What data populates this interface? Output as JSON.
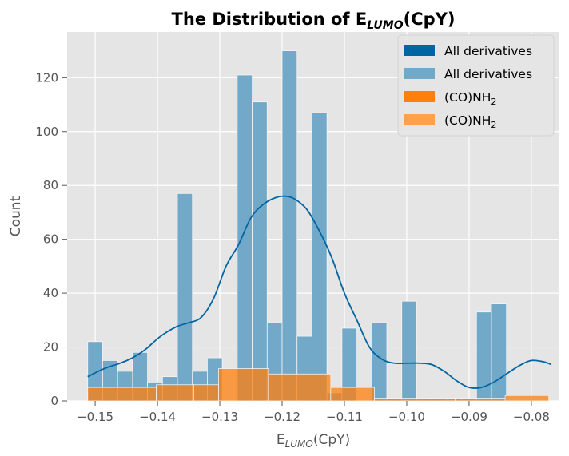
{
  "chart_data": {
    "type": "bar",
    "title": {
      "main": "The Distribution of E",
      "sub": "LUMO",
      "tail": "(CpY)"
    },
    "xlabel": {
      "main": "E",
      "sub": "LUMO",
      "tail": "(CpY)"
    },
    "ylabel": "Count",
    "xlim": [
      -0.1545,
      -0.0755
    ],
    "ylim": [
      0,
      137
    ],
    "x_ticks": [
      -0.15,
      -0.14,
      -0.13,
      -0.12,
      -0.11,
      -0.1,
      -0.09,
      -0.08
    ],
    "x_tick_labels": [
      "−0.15",
      "−0.14",
      "−0.13",
      "−0.12",
      "−0.11",
      "−0.10",
      "−0.09",
      "−0.08"
    ],
    "y_ticks": [
      0,
      20,
      40,
      60,
      80,
      100,
      120
    ],
    "y_tick_labels": [
      "0",
      "20",
      "40",
      "60",
      "80",
      "100",
      "120"
    ],
    "grid": true,
    "legend_position": "top-right",
    "legend": [
      {
        "label": "All derivatives",
        "sub": "",
        "color": "#0066a3"
      },
      {
        "label": "All derivatives",
        "sub": "",
        "color": "#72a9c9"
      },
      {
        "label": "(CO)NH",
        "sub": "2",
        "color": "#ff7f0e"
      },
      {
        "label": "(CO)NH",
        "sub": "2",
        "color": "#ffa04a"
      }
    ],
    "series": [
      {
        "name": "All derivatives",
        "color": "#0066a3",
        "bin_start": -0.1512,
        "bin_width": 0.0024,
        "counts": [
          22,
          15,
          11,
          18,
          7,
          9,
          77,
          11,
          16,
          0,
          121,
          111,
          29,
          130,
          24,
          107,
          3,
          27,
          0,
          29,
          1,
          37,
          1,
          1,
          1,
          1,
          33,
          36
        ],
        "kde": {
          "x": [
            -0.1512,
            -0.1495,
            -0.148,
            -0.146,
            -0.144,
            -0.142,
            -0.1395,
            -0.137,
            -0.135,
            -0.133,
            -0.131,
            -0.129,
            -0.127,
            -0.125,
            -0.123,
            -0.121,
            -0.1195,
            -0.118,
            -0.116,
            -0.114,
            -0.112,
            -0.11,
            -0.108,
            -0.106,
            -0.104,
            -0.102,
            -0.1,
            -0.098,
            -0.096,
            -0.094,
            -0.092,
            -0.09,
            -0.088,
            -0.086,
            -0.084,
            -0.082,
            -0.08,
            -0.078,
            -0.0768
          ],
          "y": [
            9,
            11,
            12.5,
            14,
            16,
            19,
            24,
            27.5,
            29,
            31,
            38,
            50,
            58,
            68,
            73,
            75.5,
            76,
            75,
            71,
            63,
            53,
            40,
            30,
            20,
            15.5,
            14,
            14,
            14,
            13.5,
            11,
            7.5,
            5,
            5,
            7,
            10,
            13,
            15,
            14.5,
            13.5
          ]
        }
      },
      {
        "name": "(CO)NH2",
        "color": "#ff7f0e",
        "bins": [
          {
            "start": -0.1512,
            "end": -0.1452,
            "count": 5
          },
          {
            "start": -0.1452,
            "end": -0.1402,
            "count": 5
          },
          {
            "start": -0.1402,
            "end": -0.1342,
            "count": 6
          },
          {
            "start": -0.1342,
            "end": -0.1302,
            "count": 6
          },
          {
            "start": -0.1302,
            "end": -0.1222,
            "count": 12
          },
          {
            "start": -0.1222,
            "end": -0.1122,
            "count": 10
          },
          {
            "start": -0.1122,
            "end": -0.1052,
            "count": 5
          },
          {
            "start": -0.1052,
            "end": -0.0922,
            "count": 1
          },
          {
            "start": -0.0922,
            "end": -0.0842,
            "count": 1
          },
          {
            "start": -0.0842,
            "end": -0.0772,
            "count": 2
          }
        ]
      }
    ]
  }
}
